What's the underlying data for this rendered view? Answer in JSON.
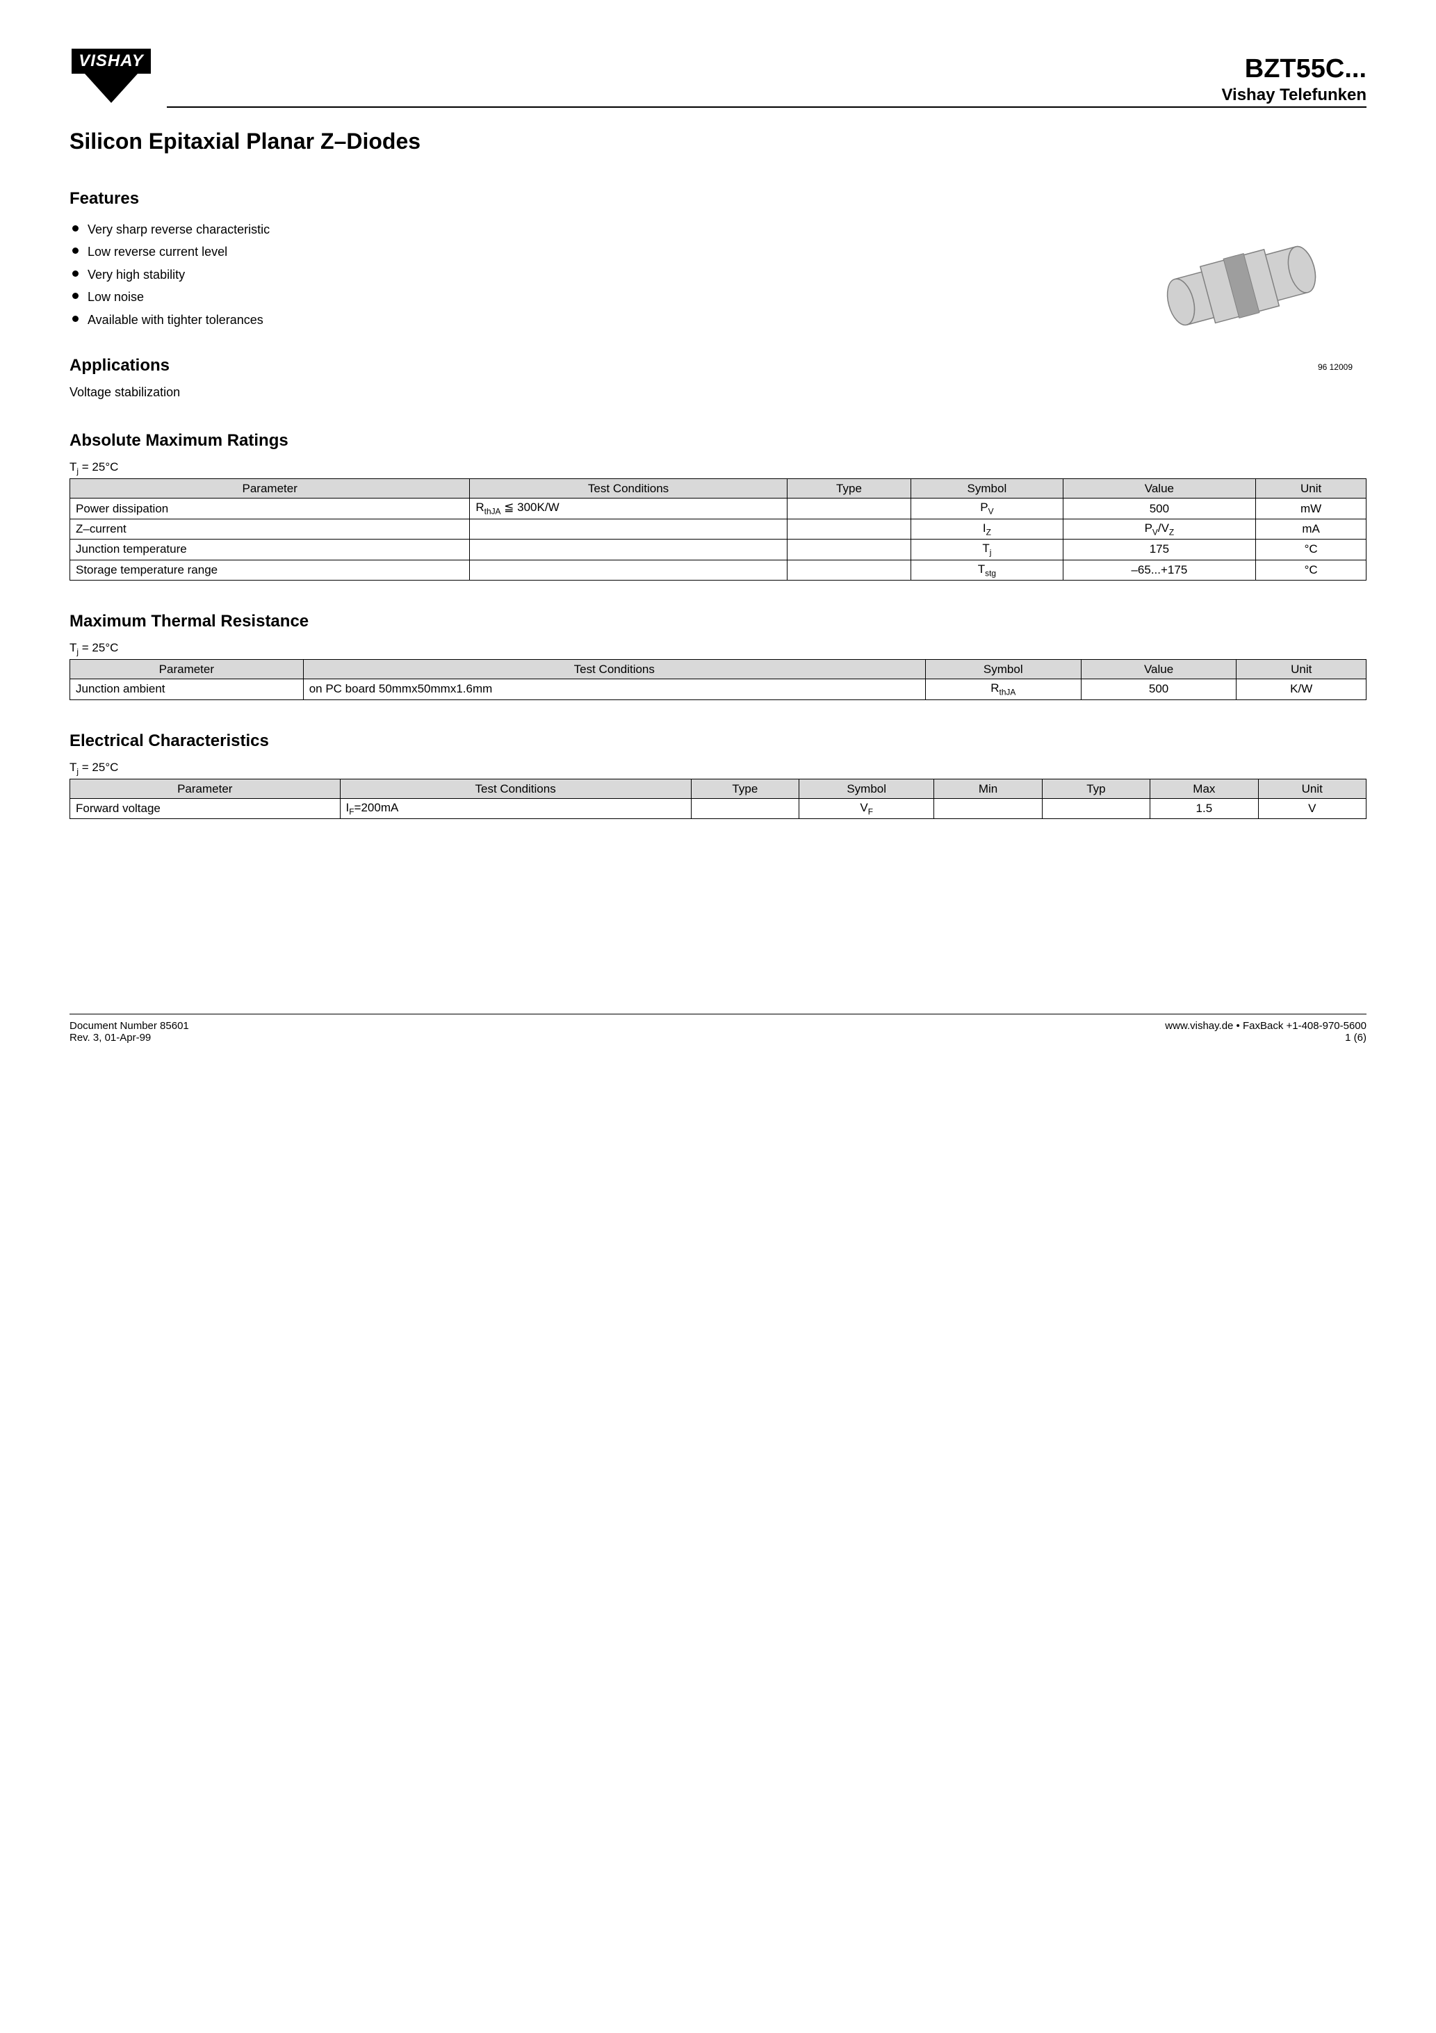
{
  "header": {
    "logo_text": "VISHAY",
    "part_number": "BZT55C...",
    "brand": "Vishay Telefunken"
  },
  "main_title": "Silicon Epitaxial Planar Z–Diodes",
  "features": {
    "heading": "Features",
    "items": [
      "Very sharp reverse characteristic",
      "Low reverse current level",
      "Very high stability",
      "Low noise",
      "Available with tighter tolerances"
    ]
  },
  "applications": {
    "heading": "Applications",
    "text": "Voltage stabilization"
  },
  "figure_caption": "96 12009",
  "amr": {
    "heading": "Absolute Maximum Ratings",
    "condition": "Tj = 25°C",
    "columns": [
      "Parameter",
      "Test Conditions",
      "Type",
      "Symbol",
      "Value",
      "Unit"
    ],
    "rows": [
      {
        "param": "Power dissipation",
        "tc": "RthJA ≦ 300K/W",
        "type": "",
        "sym": "P",
        "sym_sub": "V",
        "val": "500",
        "unit": "mW"
      },
      {
        "param": "Z–current",
        "tc": "",
        "type": "",
        "sym": "I",
        "sym_sub": "Z",
        "val": "PV/VZ",
        "unit": "mA"
      },
      {
        "param": "Junction temperature",
        "tc": "",
        "type": "",
        "sym": "T",
        "sym_sub": "j",
        "val": "175",
        "unit": "°C"
      },
      {
        "param": "Storage temperature range",
        "tc": "",
        "type": "",
        "sym": "T",
        "sym_sub": "stg",
        "val": "–65...+175",
        "unit": "°C"
      }
    ]
  },
  "mtr": {
    "heading": "Maximum Thermal Resistance",
    "condition": "Tj = 25°C",
    "columns": [
      "Parameter",
      "Test Conditions",
      "Symbol",
      "Value",
      "Unit"
    ],
    "rows": [
      {
        "param": "Junction ambient",
        "tc": "on PC board 50mmx50mmx1.6mm",
        "sym": "R",
        "sym_sub": "thJA",
        "val": "500",
        "unit": "K/W"
      }
    ]
  },
  "elec": {
    "heading": "Electrical Characteristics",
    "condition": "Tj = 25°C",
    "columns": [
      "Parameter",
      "Test Conditions",
      "Type",
      "Symbol",
      "Min",
      "Typ",
      "Max",
      "Unit"
    ],
    "rows": [
      {
        "param": "Forward voltage",
        "tc": "IF=200mA",
        "type": "",
        "sym": "V",
        "sym_sub": "F",
        "min": "",
        "typ": "",
        "max": "1.5",
        "unit": "V"
      }
    ]
  },
  "footer": {
    "doc_num": "Document Number 85601",
    "rev": "Rev. 3, 01-Apr-99",
    "url": "www.vishay.de • FaxBack +1-408-970-5600",
    "page": "1 (6)"
  },
  "colors": {
    "table_header_bg": "#d9d9d9",
    "device_body": "#d0d0d0",
    "device_band": "#9e9e9e",
    "device_outline": "#808080"
  }
}
